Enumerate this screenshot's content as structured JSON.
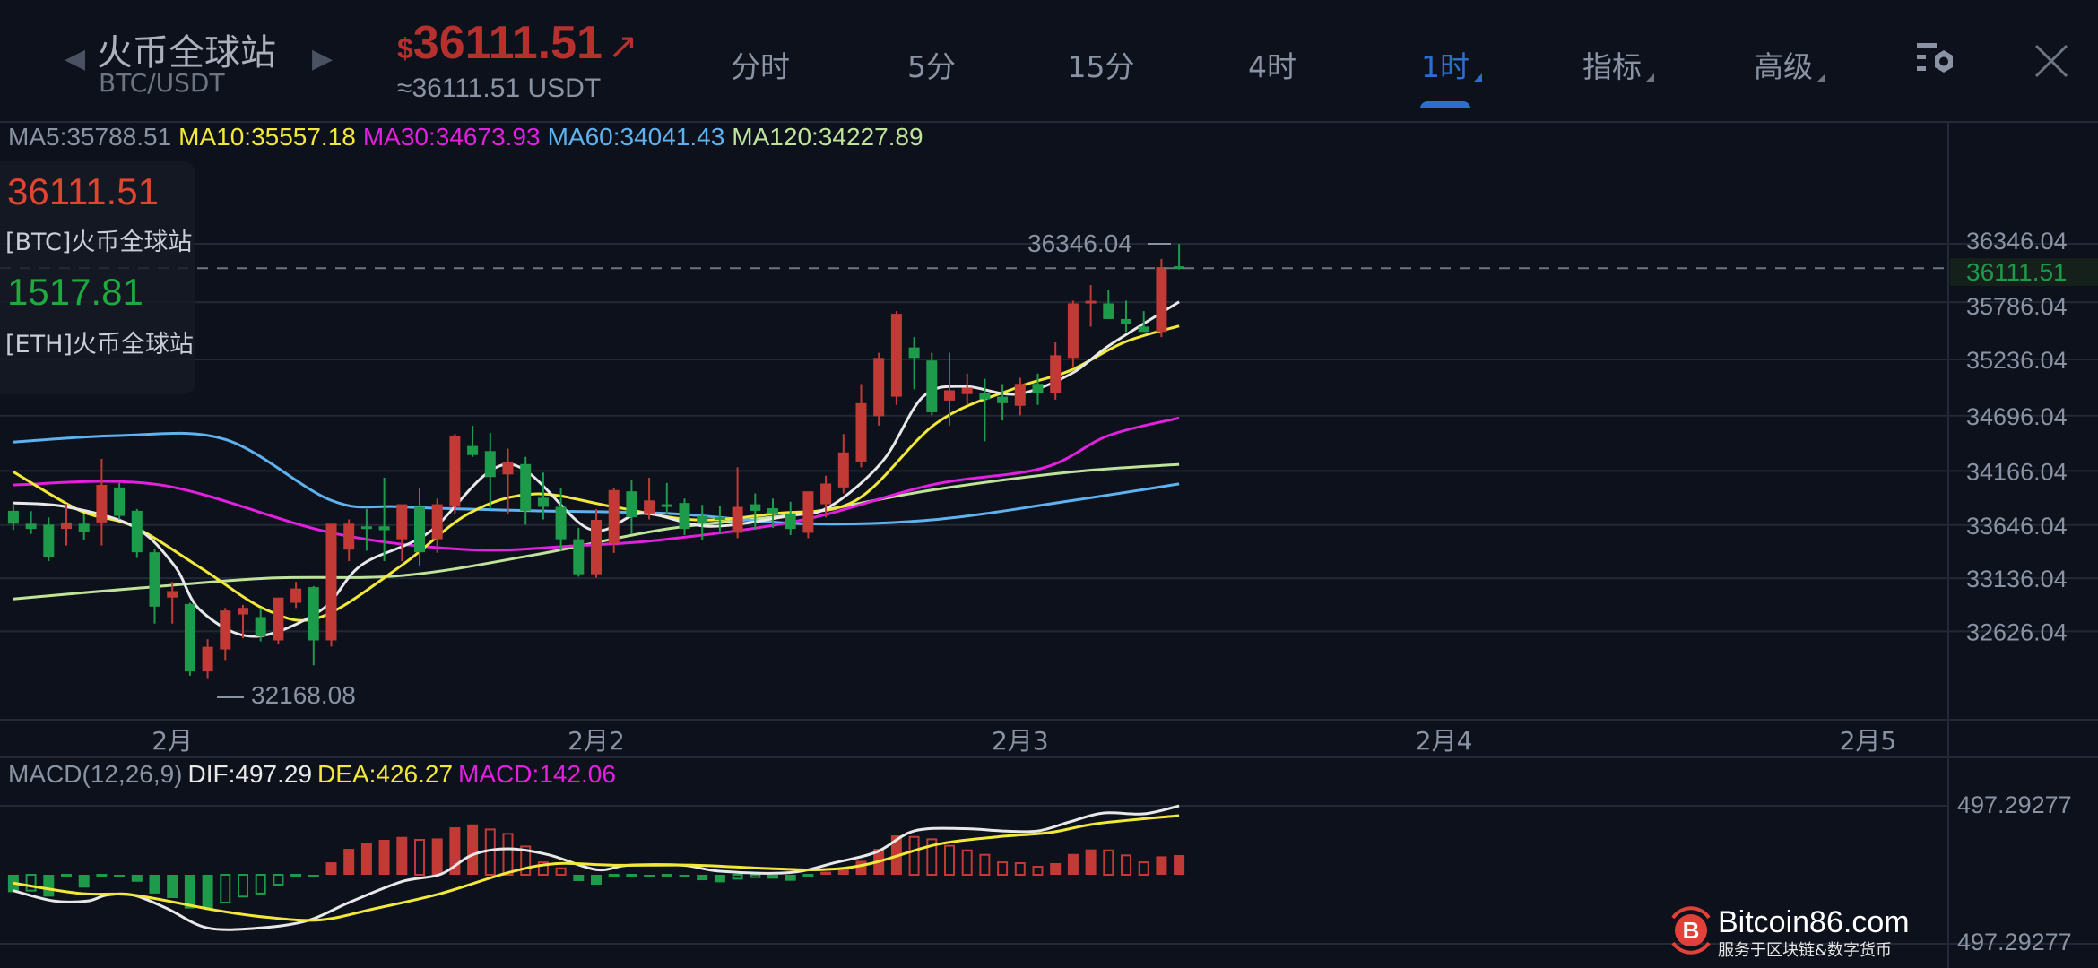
{
  "header": {
    "title": "火币全球站",
    "subtitle": "BTC/USDT",
    "price_currency": "$",
    "price": "36111.51",
    "trend_icon": "arrow-up-right-icon",
    "price_usdt": "≈36111.51 USDT",
    "tabs": [
      {
        "label": "分时",
        "active": false,
        "dropdown": false
      },
      {
        "label": "5分",
        "active": false,
        "dropdown": false
      },
      {
        "label": "15分",
        "active": false,
        "dropdown": false
      },
      {
        "label": "4时",
        "active": false,
        "dropdown": false
      },
      {
        "label": "1时",
        "active": true,
        "dropdown": true
      },
      {
        "label": "指标",
        "active": false,
        "dropdown": true
      },
      {
        "label": "高级",
        "active": false,
        "dropdown": true
      }
    ],
    "settings_icon": "chart-settings-icon",
    "close_icon": "close-icon"
  },
  "overlay": {
    "btc_price": "36111.51",
    "btc_name": "[BTC]火币全球站",
    "eth_price": "1517.81",
    "eth_name": "[ETH]火币全球站"
  },
  "ma_legend": {
    "ma5": "MA5:35788.51",
    "ma10": "MA10:35557.18",
    "ma30": "MA30:34673.93",
    "ma60": "MA60:34041.43",
    "ma120": "MA120:34227.89"
  },
  "macd_legend": {
    "params": "MACD(12,26,9)",
    "dif": "DIF:497.29",
    "dea": "DEA:426.27",
    "macd": "MACD:142.06"
  },
  "watermark": {
    "name": "Bitcoin86.com",
    "tagline": "服务于区块链&数字货币"
  },
  "colors": {
    "up": "#c13a36",
    "down": "#1e9b4a",
    "ma5": "#e8e8e8",
    "ma10": "#f2e83a",
    "ma30": "#e31fe0",
    "ma60": "#5fb2f0",
    "ma120": "#bfe39a",
    "active_tab": "#2c6fd1"
  },
  "chart_data": [
    {
      "type": "candlestick",
      "interval": "1时",
      "ylim": [
        31900,
        36700
      ],
      "y_ticks": [
        "36346.04",
        "35786.04",
        "35236.04",
        "34696.04",
        "34166.04",
        "33646.04",
        "33136.04",
        "32626.04"
      ],
      "x_ticks": [
        "2月",
        "2月2",
        "2月3",
        "2月4",
        "2月5"
      ],
      "x_tick_candle_index": [
        9,
        33,
        57,
        81,
        105
      ],
      "current_price": "36111.51",
      "max_label": "36346.04",
      "min_label": "32168.08",
      "candles_ohlc": [
        [
          33783,
          33850,
          33600,
          33659
        ],
        [
          33659,
          33780,
          33560,
          33609
        ],
        [
          33650,
          33720,
          33300,
          33340
        ],
        [
          33609,
          33850,
          33450,
          33671
        ],
        [
          33659,
          33750,
          33500,
          33584
        ],
        [
          33671,
          34281,
          33450,
          34032
        ],
        [
          34007,
          34050,
          33700,
          33734
        ],
        [
          33783,
          33800,
          33330,
          33385
        ],
        [
          33385,
          33420,
          32700,
          32863
        ],
        [
          32950,
          33100,
          32700,
          33012
        ],
        [
          32888,
          32900,
          32200,
          32241
        ],
        [
          32241,
          32550,
          32168,
          32477
        ],
        [
          32452,
          32850,
          32350,
          32826
        ],
        [
          32788,
          32880,
          32560,
          32851
        ],
        [
          32763,
          32850,
          32530,
          32577
        ],
        [
          32539,
          32900,
          32500,
          32950
        ],
        [
          32900,
          33100,
          32850,
          33037
        ],
        [
          33050,
          33060,
          32300,
          32539
        ],
        [
          32539,
          33450,
          32480,
          33659
        ],
        [
          33410,
          33700,
          33300,
          33659
        ],
        [
          33634,
          33800,
          33400,
          33609
        ],
        [
          33634,
          34100,
          33300,
          33597
        ],
        [
          33510,
          33800,
          33300,
          33846
        ],
        [
          33821,
          34000,
          33250,
          33385
        ],
        [
          33510,
          33900,
          33380,
          33846
        ],
        [
          33821,
          34520,
          33750,
          34505
        ],
        [
          34405,
          34600,
          34300,
          34318
        ],
        [
          34356,
          34530,
          33800,
          34107
        ],
        [
          34132,
          34380,
          33750,
          34256
        ],
        [
          34231,
          34300,
          33650,
          33783
        ],
        [
          33908,
          34150,
          33700,
          33821
        ],
        [
          33821,
          34000,
          33400,
          33510
        ],
        [
          33510,
          33620,
          33150,
          33174
        ],
        [
          33174,
          33800,
          33140,
          33696
        ],
        [
          33472,
          34000,
          33380,
          33982
        ],
        [
          33970,
          34080,
          33560,
          33721
        ],
        [
          33758,
          34100,
          33700,
          33883
        ],
        [
          33846,
          34050,
          33750,
          33821
        ],
        [
          33858,
          33900,
          33550,
          33609
        ],
        [
          33734,
          33840,
          33500,
          33659
        ],
        [
          33721,
          33830,
          33560,
          33696
        ],
        [
          33572,
          34200,
          33520,
          33821
        ],
        [
          33846,
          33950,
          33600,
          33783
        ],
        [
          33808,
          33900,
          33620,
          33758
        ],
        [
          33758,
          33870,
          33550,
          33609
        ],
        [
          33572,
          33950,
          33520,
          33970
        ],
        [
          33846,
          34120,
          33720,
          34045
        ],
        [
          34007,
          34520,
          33950,
          34343
        ],
        [
          34256,
          35000,
          34200,
          34816
        ],
        [
          34691,
          35300,
          34600,
          35251
        ],
        [
          34878,
          35700,
          34800,
          35674
        ],
        [
          35351,
          35450,
          34950,
          35251
        ],
        [
          35226,
          35300,
          34700,
          34729
        ],
        [
          34841,
          35300,
          34600,
          34940
        ],
        [
          34903,
          35100,
          34800,
          34965
        ],
        [
          34915,
          35050,
          34450,
          34853
        ],
        [
          34878,
          35000,
          34650,
          34816
        ],
        [
          34791,
          35060,
          34700,
          35002
        ],
        [
          35002,
          35100,
          34800,
          34915
        ],
        [
          34915,
          35400,
          34850,
          35276
        ],
        [
          35251,
          35800,
          35150,
          35774
        ],
        [
          35774,
          35950,
          35550,
          35799
        ],
        [
          35774,
          35900,
          35650,
          35624
        ],
        [
          35624,
          35800,
          35500,
          35575
        ],
        [
          35551,
          35700,
          35500,
          35500
        ],
        [
          35500,
          36200,
          35450,
          36122
        ],
        [
          36130,
          36346,
          36100,
          36111
        ]
      ],
      "ma_series": {
        "ma5": [
          [
            0,
            33858
          ],
          [
            3,
            33821
          ],
          [
            6.8,
            33634
          ],
          [
            9.1,
            33261
          ],
          [
            10.6,
            32826
          ],
          [
            13.6,
            32577
          ],
          [
            17.4,
            32826
          ],
          [
            19.7,
            33261
          ],
          [
            23.5,
            33572
          ],
          [
            28,
            34231
          ],
          [
            32.6,
            33609
          ],
          [
            35.6,
            33758
          ],
          [
            39.4,
            33634
          ],
          [
            43.9,
            33734
          ],
          [
            46.2,
            33821
          ],
          [
            49.2,
            34256
          ],
          [
            51.5,
            34878
          ],
          [
            53.8,
            34977
          ],
          [
            56.8,
            34903
          ],
          [
            59.8,
            35090
          ],
          [
            62.1,
            35376
          ],
          [
            66,
            35789
          ]
        ],
        "ma10": [
          [
            0,
            34157
          ],
          [
            3.8,
            33783
          ],
          [
            6.8,
            33634
          ],
          [
            10.6,
            33236
          ],
          [
            14.4,
            32826
          ],
          [
            17.4,
            32763
          ],
          [
            22,
            33261
          ],
          [
            25.8,
            33758
          ],
          [
            29.5,
            33945
          ],
          [
            34,
            33821
          ],
          [
            38.6,
            33696
          ],
          [
            43.2,
            33758
          ],
          [
            47.7,
            33883
          ],
          [
            52.3,
            34629
          ],
          [
            56.8,
            34965
          ],
          [
            59.8,
            35127
          ],
          [
            62.9,
            35401
          ],
          [
            66,
            35557
          ]
        ],
        "ma30": [
          [
            0,
            34032
          ],
          [
            8.3,
            34032
          ],
          [
            18,
            33572
          ],
          [
            25.8,
            33410
          ],
          [
            31.8,
            33447
          ],
          [
            37,
            33510
          ],
          [
            44.7,
            33696
          ],
          [
            52,
            34032
          ],
          [
            58.3,
            34194
          ],
          [
            62,
            34505
          ],
          [
            66,
            34674
          ]
        ],
        "ma60": [
          [
            0,
            34443
          ],
          [
            6,
            34505
          ],
          [
            12,
            34468
          ],
          [
            18,
            33883
          ],
          [
            22,
            33821
          ],
          [
            29.5,
            33783
          ],
          [
            37,
            33758
          ],
          [
            44.7,
            33659
          ],
          [
            52,
            33696
          ],
          [
            60,
            33883
          ],
          [
            66,
            34041
          ]
        ],
        "ma120": [
          [
            0,
            32937
          ],
          [
            6.8,
            33037
          ],
          [
            14.4,
            33136
          ],
          [
            22,
            33161
          ],
          [
            29.5,
            33360
          ],
          [
            37,
            33609
          ],
          [
            44.7,
            33758
          ],
          [
            52,
            33982
          ],
          [
            60,
            34157
          ],
          [
            66,
            34228
          ]
        ]
      }
    },
    {
      "type": "macd",
      "y_tick_labels": [
        "497.29277",
        "497.29277"
      ],
      "histogram": [
        -125,
        -114,
        -157,
        -5,
        -92,
        -5,
        -5,
        -50,
        -135,
        -168,
        -243,
        -243,
        -200,
        -157,
        -135,
        -71,
        -8,
        -15,
        90,
        187,
        230,
        252,
        273,
        252,
        262,
        342,
        363,
        327,
        295,
        204,
        90,
        47,
        -45,
        -71,
        -8,
        -5,
        -5,
        -3,
        -8,
        -39,
        -54,
        -28,
        -17,
        -28,
        -43,
        -5,
        22,
        47,
        101,
        187,
        284,
        273,
        256,
        209,
        176,
        144,
        90,
        84,
        58,
        84,
        150,
        183,
        176,
        140,
        90,
        133,
        142
      ],
      "dif": [
        [
          0,
          -114
        ],
        [
          2.3,
          -189
        ],
        [
          4.2,
          -189
        ],
        [
          5.3,
          -146
        ],
        [
          6.8,
          -146
        ],
        [
          8.7,
          -243
        ],
        [
          11,
          -383
        ],
        [
          14,
          -383
        ],
        [
          16.7,
          -329
        ],
        [
          19,
          -200
        ],
        [
          22,
          -49
        ],
        [
          24.2,
          4
        ],
        [
          26,
          144
        ],
        [
          28,
          187
        ],
        [
          30.3,
          144
        ],
        [
          33,
          37
        ],
        [
          34.8,
          69
        ],
        [
          37.9,
          69
        ],
        [
          40,
          26
        ],
        [
          43.9,
          15
        ],
        [
          46.6,
          90
        ],
        [
          48.9,
          166
        ],
        [
          51,
          316
        ],
        [
          53.8,
          333
        ],
        [
          56,
          316
        ],
        [
          58,
          316
        ],
        [
          59.8,
          381
        ],
        [
          61.7,
          445
        ],
        [
          64,
          439
        ],
        [
          66,
          497
        ]
      ],
      "dea": [
        [
          0,
          -60
        ],
        [
          3.8,
          -135
        ],
        [
          6.8,
          -146
        ],
        [
          11.4,
          -254
        ],
        [
          14.4,
          -307
        ],
        [
          17.4,
          -325
        ],
        [
          20.5,
          -243
        ],
        [
          24.2,
          -135
        ],
        [
          28,
          15
        ],
        [
          30.7,
          80
        ],
        [
          34,
          69
        ],
        [
          38.6,
          69
        ],
        [
          42.4,
          47
        ],
        [
          45.8,
          37
        ],
        [
          48.5,
          80
        ],
        [
          52.3,
          219
        ],
        [
          55.7,
          273
        ],
        [
          58.7,
          305
        ],
        [
          61.4,
          370
        ],
        [
          66,
          426
        ]
      ]
    }
  ]
}
